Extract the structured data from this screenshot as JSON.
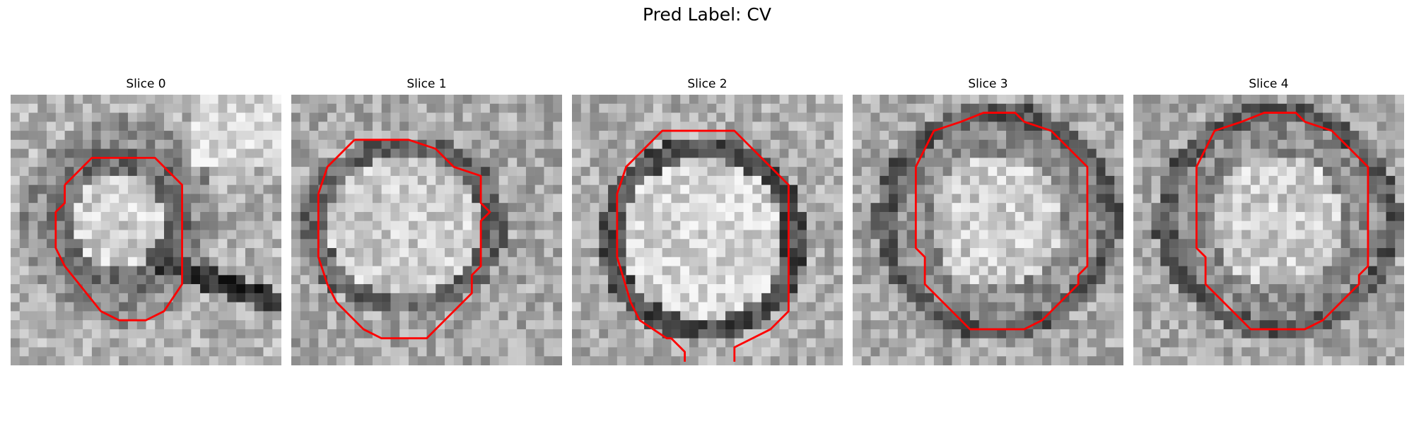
{
  "figure": {
    "suptitle": "Pred Label: CV"
  },
  "panels": [
    {
      "title": "Slice 0",
      "seed": 11,
      "pattern": "blob",
      "contour_color": "#ff0000"
    },
    {
      "title": "Slice 1",
      "seed": 23,
      "pattern": "ring",
      "contour_color": "#ff0000"
    },
    {
      "title": "Slice 2",
      "seed": 37,
      "pattern": "disk",
      "contour_color": "#ff0000"
    },
    {
      "title": "Slice 3",
      "seed": 41,
      "pattern": "ringtop",
      "contour_color": "#ff0000"
    },
    {
      "title": "Slice 4",
      "seed": 53,
      "pattern": "ringtop",
      "contour_color": "#ff0000"
    }
  ]
}
